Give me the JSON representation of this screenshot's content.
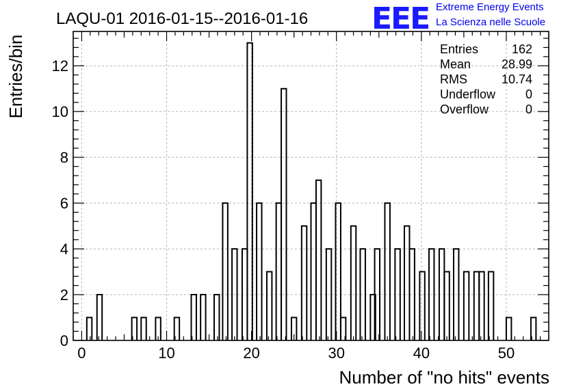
{
  "chart_data": {
    "type": "bar",
    "title": "LAQU-01 2016-01-15--2016-01-16",
    "xlabel": "Number of \"no hits\" events",
    "ylabel": "Entries/bin",
    "xlim": [
      -1,
      55
    ],
    "ylim": [
      0,
      13.5
    ],
    "grid": true,
    "bin_width": 0.6,
    "xticks": [
      0,
      10,
      20,
      30,
      40,
      50
    ],
    "yticks": [
      0,
      2,
      4,
      6,
      8,
      10,
      12
    ],
    "bins": [
      {
        "x": 0.6,
        "y": 1
      },
      {
        "x": 1.8,
        "y": 2
      },
      {
        "x": 5.9,
        "y": 1
      },
      {
        "x": 7.0,
        "y": 1
      },
      {
        "x": 8.7,
        "y": 1
      },
      {
        "x": 10.9,
        "y": 1
      },
      {
        "x": 12.9,
        "y": 2
      },
      {
        "x": 14.0,
        "y": 2
      },
      {
        "x": 15.6,
        "y": 2
      },
      {
        "x": 16.6,
        "y": 6
      },
      {
        "x": 17.7,
        "y": 4
      },
      {
        "x": 18.9,
        "y": 4
      },
      {
        "x": 19.5,
        "y": 13
      },
      {
        "x": 20.6,
        "y": 6
      },
      {
        "x": 21.8,
        "y": 3
      },
      {
        "x": 22.9,
        "y": 6
      },
      {
        "x": 23.5,
        "y": 11
      },
      {
        "x": 24.7,
        "y": 1
      },
      {
        "x": 25.9,
        "y": 5
      },
      {
        "x": 27.0,
        "y": 6
      },
      {
        "x": 27.6,
        "y": 7
      },
      {
        "x": 28.8,
        "y": 4
      },
      {
        "x": 29.9,
        "y": 6
      },
      {
        "x": 30.5,
        "y": 1
      },
      {
        "x": 31.7,
        "y": 5
      },
      {
        "x": 32.8,
        "y": 4
      },
      {
        "x": 34.0,
        "y": 2
      },
      {
        "x": 34.5,
        "y": 4
      },
      {
        "x": 35.7,
        "y": 6
      },
      {
        "x": 36.9,
        "y": 4
      },
      {
        "x": 38.0,
        "y": 5
      },
      {
        "x": 38.6,
        "y": 4
      },
      {
        "x": 39.8,
        "y": 3
      },
      {
        "x": 40.9,
        "y": 4
      },
      {
        "x": 42.1,
        "y": 4
      },
      {
        "x": 42.7,
        "y": 3
      },
      {
        "x": 43.8,
        "y": 4
      },
      {
        "x": 45.0,
        "y": 3
      },
      {
        "x": 46.2,
        "y": 3
      },
      {
        "x": 46.8,
        "y": 3
      },
      {
        "x": 47.9,
        "y": 3
      },
      {
        "x": 50.0,
        "y": 1
      },
      {
        "x": 52.9,
        "y": 1
      }
    ],
    "stats": [
      {
        "label": "Entries",
        "value": "162"
      },
      {
        "label": "Mean",
        "value": "28.99"
      },
      {
        "label": "RMS",
        "value": "10.74"
      },
      {
        "label": "Underflow",
        "value": "0"
      },
      {
        "label": "Overflow",
        "value": "0"
      }
    ]
  },
  "logo": {
    "letters": "EEE",
    "line1": "Extreme Energy Events",
    "line2": "La Scienza nelle Scuole",
    "color": "#0000ee"
  }
}
